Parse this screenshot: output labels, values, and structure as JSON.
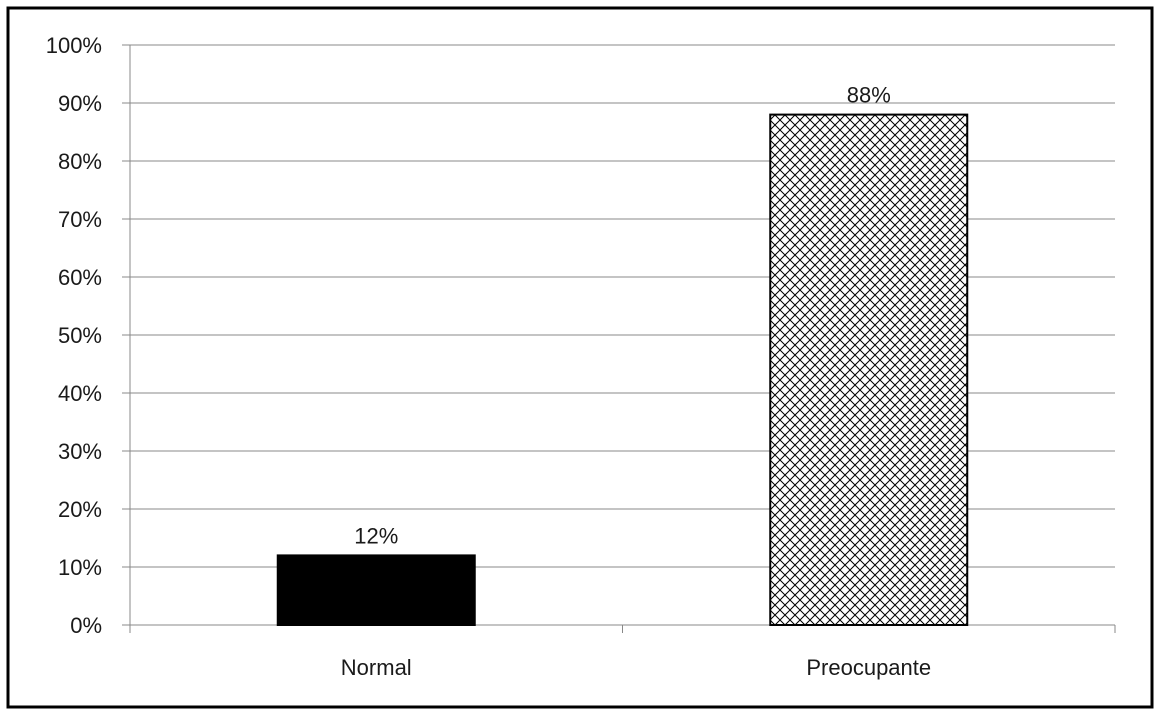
{
  "chart_data": {
    "type": "bar",
    "title": "",
    "xlabel": "",
    "ylabel": "",
    "categories": [
      "Normal",
      "Preocupante"
    ],
    "values": [
      12,
      88
    ],
    "data_labels": [
      "12%",
      "88%"
    ],
    "ylim": [
      0,
      100
    ],
    "y_ticks": [
      0,
      10,
      20,
      30,
      40,
      50,
      60,
      70,
      80,
      90,
      100
    ],
    "y_tick_labels": [
      "0%",
      "10%",
      "20%",
      "30%",
      "40%",
      "50%",
      "60%",
      "70%",
      "80%",
      "90%",
      "100%"
    ],
    "grid": true,
    "legend": "none",
    "bar_styles": [
      "solid",
      "crosshatch"
    ],
    "colors": {
      "bar_solid": "#000000",
      "bar_hatch_line": "#000000",
      "bar_hatch_bg": "#ffffff",
      "grid": "#888888",
      "axis": "#888888",
      "frame": "#000000"
    }
  }
}
